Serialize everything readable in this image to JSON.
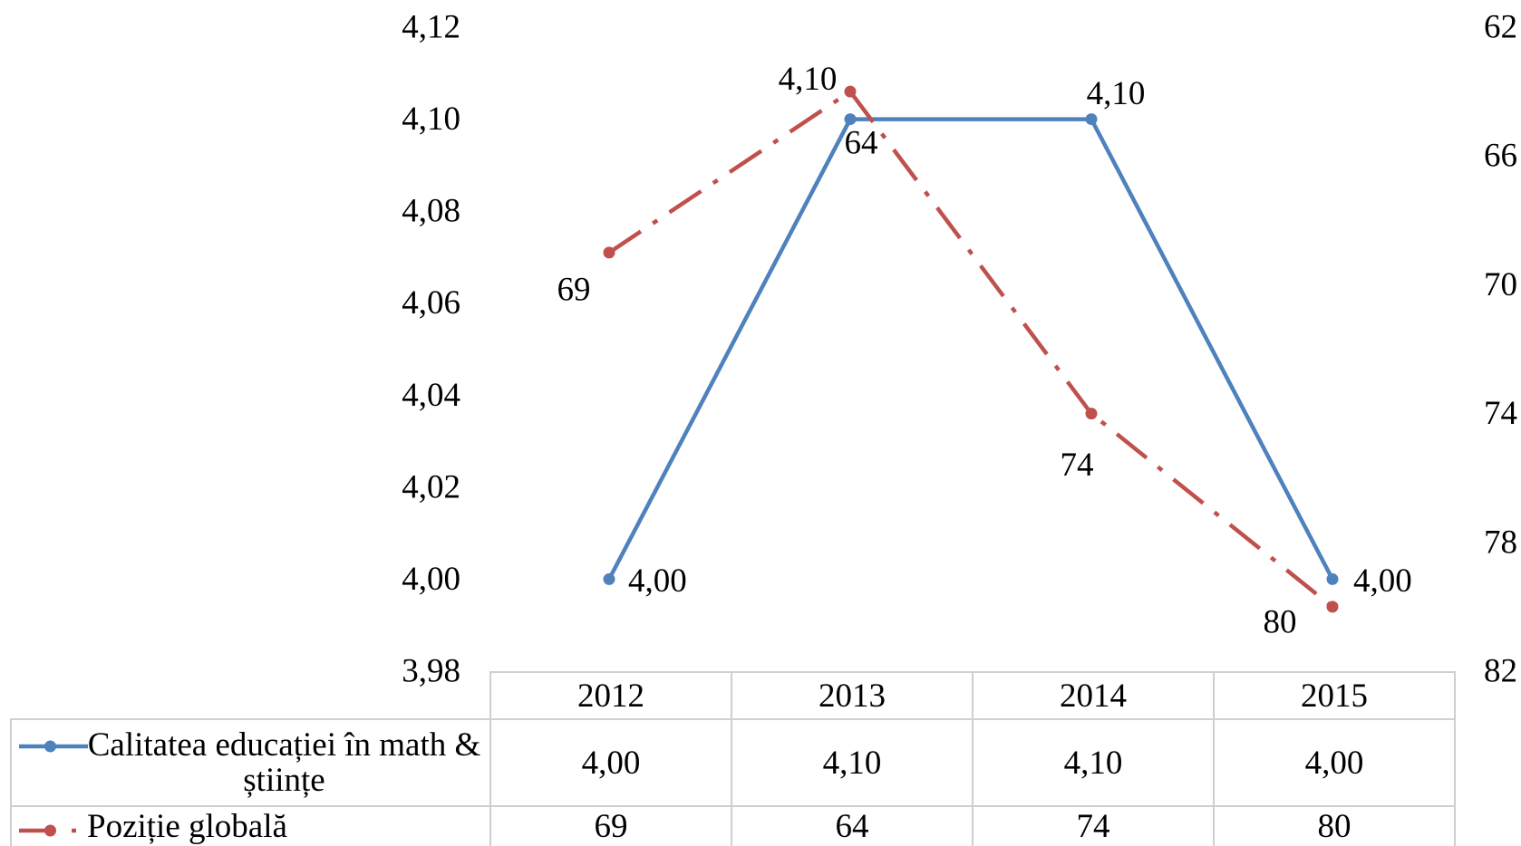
{
  "chart_data": {
    "type": "line",
    "categories": [
      "2012",
      "2013",
      "2014",
      "2015"
    ],
    "series": [
      {
        "name": "Calitatea educației în math & științe",
        "values": [
          4.0,
          4.1,
          4.1,
          4.0
        ],
        "labels": [
          "4,00",
          "4,10",
          "4,10",
          "4,00"
        ],
        "axis": "left",
        "color": "#4F81BD",
        "style": "solid",
        "marker": "circle"
      },
      {
        "name": "Poziție globală",
        "values": [
          69,
          64,
          74,
          80
        ],
        "labels": [
          "69",
          "64",
          "74",
          "80"
        ],
        "axis": "right",
        "color": "#C0504D",
        "style": "dash-dot",
        "marker": "circle"
      }
    ],
    "y_left": {
      "range": [
        3.98,
        4.12
      ],
      "reversed": false,
      "ticks": [
        "4,12",
        "4,10",
        "4,08",
        "4,06",
        "4,04",
        "4,02",
        "4,00",
        "3,98"
      ]
    },
    "y_right": {
      "range": [
        62,
        82
      ],
      "reversed": true,
      "ticks": [
        "62",
        "66",
        "70",
        "74",
        "78",
        "82"
      ]
    },
    "grid": false,
    "data_table": true,
    "legend": "bottom-left"
  }
}
